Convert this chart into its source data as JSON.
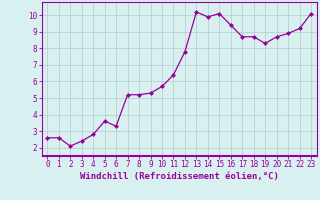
{
  "x": [
    0,
    1,
    2,
    3,
    4,
    5,
    6,
    7,
    8,
    9,
    10,
    11,
    12,
    13,
    14,
    15,
    16,
    17,
    18,
    19,
    20,
    21,
    22,
    23
  ],
  "y": [
    2.6,
    2.6,
    2.1,
    2.4,
    2.8,
    3.6,
    3.3,
    5.2,
    5.2,
    5.3,
    5.7,
    6.4,
    7.8,
    10.2,
    9.9,
    10.1,
    9.4,
    8.7,
    8.7,
    8.3,
    8.7,
    8.9,
    9.2,
    10.1
  ],
  "line_color": "#990099",
  "marker": "D",
  "marker_size": 2,
  "background_color": "#d8f0f0",
  "grid_color": "#b0cccc",
  "xlabel": "Windchill (Refroidissement éolien,°C)",
  "xlabel_color": "#990099",
  "xlabel_fontsize": 6.5,
  "ylabel_ticks": [
    2,
    3,
    4,
    5,
    6,
    7,
    8,
    9,
    10
  ],
  "xlim": [
    -0.5,
    23.5
  ],
  "ylim": [
    1.5,
    10.8
  ],
  "tick_color": "#990099",
  "tick_fontsize": 5.5,
  "spine_color": "#990099",
  "line_width": 0.9,
  "border_color": "#990099"
}
